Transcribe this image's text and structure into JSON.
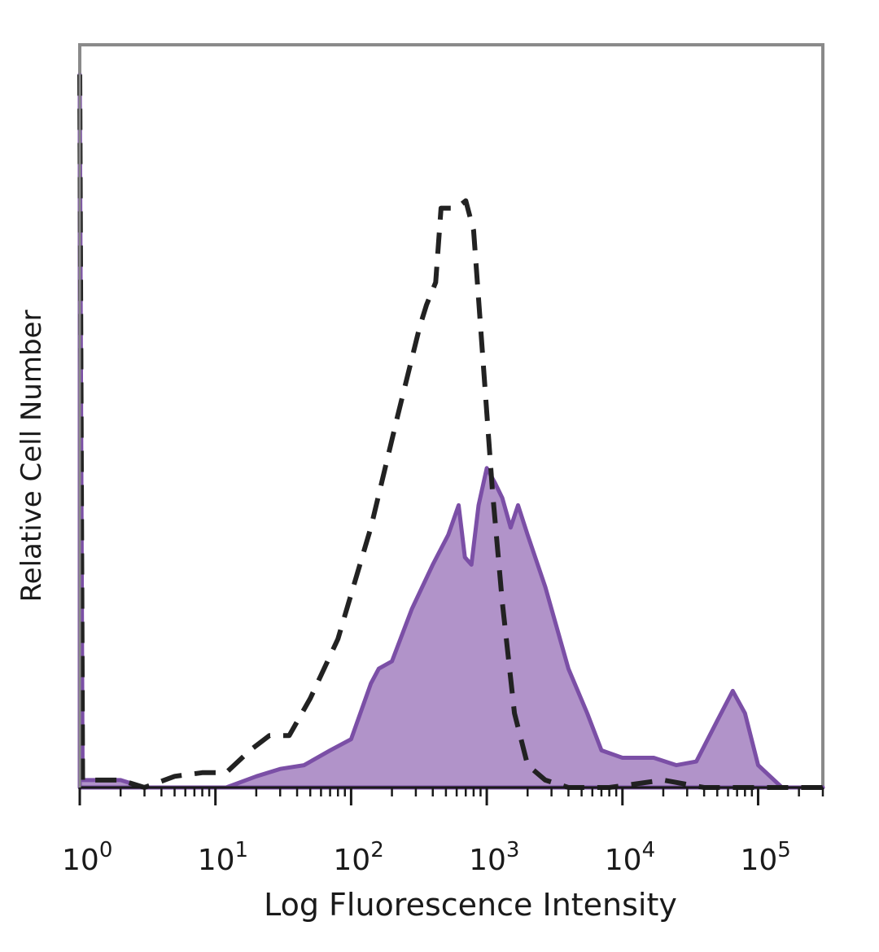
{
  "chart_data": {
    "type": "area",
    "xlabel": "Log Fluorescence Intensity",
    "ylabel": "Relative Cell Number",
    "xscale": "log",
    "xlim": [
      1,
      300000
    ],
    "ylim": [
      0,
      1
    ],
    "grid": false,
    "x_ticks": [
      {
        "base": "10",
        "exp": "0",
        "value": 1
      },
      {
        "base": "10",
        "exp": "1",
        "value": 10
      },
      {
        "base": "10",
        "exp": "2",
        "value": 100
      },
      {
        "base": "10",
        "exp": "3",
        "value": 1000
      },
      {
        "base": "10",
        "exp": "4",
        "value": 10000
      },
      {
        "base": "10",
        "exp": "5",
        "value": 100000
      }
    ],
    "series": [
      {
        "style": "filled",
        "color": "#7b4fa6",
        "fill": "#b193c9",
        "points": [
          [
            1,
            0.96
          ],
          [
            1.05,
            0.01
          ],
          [
            2,
            0.01
          ],
          [
            3,
            0.0
          ],
          [
            5,
            0.0
          ],
          [
            8,
            0.0
          ],
          [
            12,
            0.0
          ],
          [
            20,
            0.015
          ],
          [
            30,
            0.025
          ],
          [
            45,
            0.03
          ],
          [
            70,
            0.05
          ],
          [
            100,
            0.065
          ],
          [
            140,
            0.14
          ],
          [
            160,
            0.16
          ],
          [
            200,
            0.17
          ],
          [
            280,
            0.24
          ],
          [
            400,
            0.3
          ],
          [
            520,
            0.34
          ],
          [
            620,
            0.38
          ],
          [
            690,
            0.31
          ],
          [
            770,
            0.3
          ],
          [
            870,
            0.38
          ],
          [
            1000,
            0.43
          ],
          [
            1150,
            0.41
          ],
          [
            1300,
            0.39
          ],
          [
            1500,
            0.35
          ],
          [
            1700,
            0.38
          ],
          [
            2000,
            0.34
          ],
          [
            2700,
            0.27
          ],
          [
            4000,
            0.16
          ],
          [
            5500,
            0.1
          ],
          [
            7000,
            0.05
          ],
          [
            10000,
            0.04
          ],
          [
            17000,
            0.04
          ],
          [
            25000,
            0.03
          ],
          [
            35000,
            0.035
          ],
          [
            50000,
            0.09
          ],
          [
            65000,
            0.13
          ],
          [
            80000,
            0.1
          ],
          [
            100000,
            0.03
          ],
          [
            150000,
            0.0
          ],
          [
            300000,
            0.0
          ]
        ]
      },
      {
        "style": "dashed",
        "color": "#222222",
        "points": [
          [
            1,
            0.96
          ],
          [
            1.05,
            0.01
          ],
          [
            2,
            0.01
          ],
          [
            3,
            0.0
          ],
          [
            5,
            0.015
          ],
          [
            8,
            0.02
          ],
          [
            12,
            0.02
          ],
          [
            18,
            0.05
          ],
          [
            25,
            0.07
          ],
          [
            35,
            0.07
          ],
          [
            50,
            0.12
          ],
          [
            80,
            0.2
          ],
          [
            140,
            0.35
          ],
          [
            220,
            0.5
          ],
          [
            320,
            0.62
          ],
          [
            360,
            0.65
          ],
          [
            420,
            0.68
          ],
          [
            460,
            0.78
          ],
          [
            520,
            0.78
          ],
          [
            600,
            0.78
          ],
          [
            700,
            0.79
          ],
          [
            800,
            0.75
          ],
          [
            900,
            0.62
          ],
          [
            1100,
            0.4
          ],
          [
            1300,
            0.25
          ],
          [
            1600,
            0.1
          ],
          [
            2000,
            0.03
          ],
          [
            2700,
            0.01
          ],
          [
            4000,
            0.0
          ],
          [
            8000,
            0.0
          ],
          [
            20000,
            0.01
          ],
          [
            40000,
            0.0
          ],
          [
            80000,
            0.0
          ],
          [
            300000,
            0.0
          ]
        ]
      }
    ]
  }
}
